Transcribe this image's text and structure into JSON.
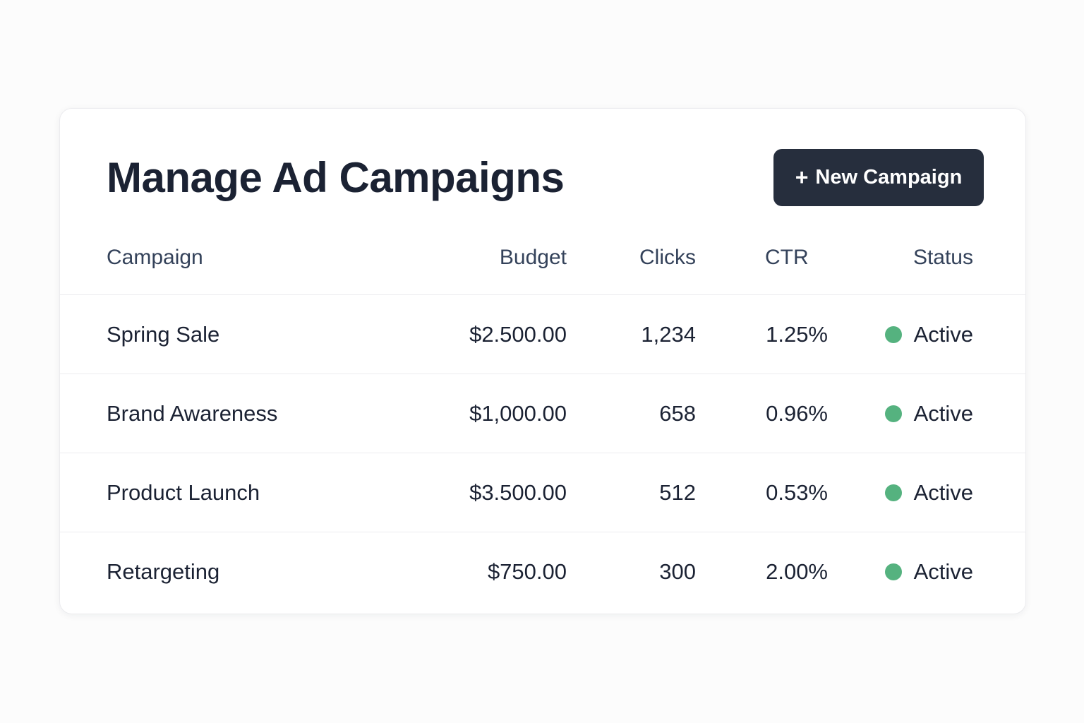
{
  "header": {
    "title": "Manage Ad Campaigns",
    "new_button_label": "New Campaign",
    "new_button_icon": "plus-icon"
  },
  "table": {
    "columns": [
      "Campaign",
      "Budget",
      "Clicks",
      "CTR",
      "Status"
    ],
    "rows": [
      {
        "campaign": "Spring Sale",
        "budget": "$2.500.00",
        "clicks": "1,234",
        "ctr": "1.25%",
        "status": "Active"
      },
      {
        "campaign": "Brand Awareness",
        "budget": "$1,000.00",
        "clicks": "658",
        "ctr": "0.96%",
        "status": "Active"
      },
      {
        "campaign": "Product Launch",
        "budget": "$3.500.00",
        "clicks": "512",
        "ctr": "0.53%",
        "status": "Active"
      },
      {
        "campaign": "Retargeting",
        "budget": "$750.00",
        "clicks": "300",
        "ctr": "2.00%",
        "status": "Active"
      }
    ]
  },
  "colors": {
    "background": "#fcfcfc",
    "button": "#262e3d",
    "status_active": "#55b27f",
    "text": "#1b2233"
  }
}
